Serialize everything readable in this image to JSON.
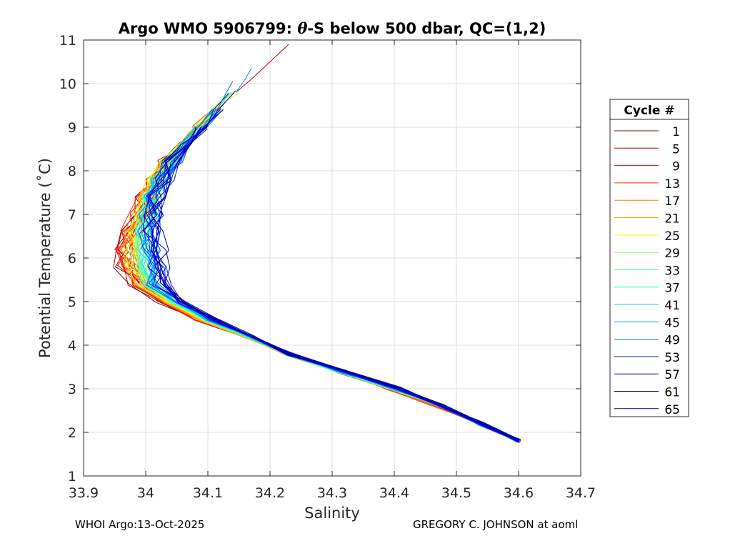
{
  "chart_data": {
    "type": "line",
    "title": "Argo WMO 5906799: θ-S below 500 dbar,  QC=(1,2)",
    "title_prefix": "Argo WMO 5906799: ",
    "title_theta": "θ",
    "title_suffix": "-S below 500 dbar,  QC=(1,2)",
    "xlabel": "Salinity",
    "ylabel": "Potential Temperature (˚C)",
    "xlim": [
      33.9,
      34.7
    ],
    "ylim": [
      1,
      11
    ],
    "xticks": [
      33.9,
      34.0,
      34.1,
      34.2,
      34.3,
      34.4,
      34.5,
      34.6,
      34.7
    ],
    "xtick_labels": [
      "33.9",
      "34",
      "34.1",
      "34.2",
      "34.3",
      "34.4",
      "34.5",
      "34.6",
      "34.7"
    ],
    "yticks": [
      1,
      2,
      3,
      4,
      5,
      6,
      7,
      8,
      9,
      10,
      11
    ],
    "ytick_labels": [
      "1",
      "2",
      "3",
      "4",
      "5",
      "6",
      "7",
      "8",
      "9",
      "10",
      "11"
    ],
    "grid": true,
    "legend": {
      "title": "Cycle #",
      "placement": "right",
      "entries": [
        "1",
        "5",
        "9",
        "13",
        "17",
        "21",
        "25",
        "29",
        "33",
        "37",
        "41",
        "45",
        "49",
        "53",
        "57",
        "61",
        "65"
      ],
      "colors": [
        "#800000",
        "#b30000",
        "#e60000",
        "#ff3300",
        "#ff8000",
        "#ccb300",
        "#ffff00",
        "#80ff40",
        "#40ff80",
        "#00ffbf",
        "#00ccff",
        "#0099e6",
        "#0066cc",
        "#0033b3",
        "#0000b3",
        "#000099",
        "#00007f"
      ]
    },
    "series_base": {
      "temperature": [
        1.8,
        2.2,
        2.6,
        3.0,
        3.4,
        3.8,
        4.2,
        4.6,
        5.0,
        5.4,
        5.8,
        6.2,
        6.6,
        7.0,
        7.4,
        7.8,
        8.2,
        8.6,
        9.0,
        9.4,
        9.8
      ],
      "salinity_early": [
        34.6,
        34.54,
        34.47,
        34.39,
        34.31,
        34.23,
        34.16,
        34.08,
        34.02,
        33.985,
        33.965,
        33.96,
        33.97,
        33.985,
        34.0,
        34.015,
        34.035,
        34.06,
        34.085,
        34.115,
        34.145
      ],
      "salinity_late": [
        34.6,
        34.54,
        34.48,
        34.41,
        34.32,
        34.23,
        34.17,
        34.11,
        34.06,
        34.03,
        34.025,
        34.02,
        34.015,
        34.015,
        34.02,
        34.03,
        34.045,
        34.065,
        34.09,
        34.115,
        34.14
      ]
    },
    "series_extensions": [
      {
        "cycle": "5",
        "salinity": [
          34.145,
          34.17,
          34.2,
          34.23
        ],
        "temperature": [
          9.8,
          10.1,
          10.5,
          10.9
        ]
      },
      {
        "cycle": "45",
        "salinity": [
          34.145,
          34.16,
          34.17
        ],
        "temperature": [
          9.8,
          10.1,
          10.35
        ]
      },
      {
        "cycle": "49",
        "salinity": [
          34.115,
          34.13,
          34.14
        ],
        "temperature": [
          9.4,
          9.8,
          10.05
        ]
      }
    ],
    "series_count": 66
  },
  "footer": {
    "left": "WHOI Argo:13-Oct-2025",
    "right": "GREGORY C. JOHNSON at aoml"
  }
}
